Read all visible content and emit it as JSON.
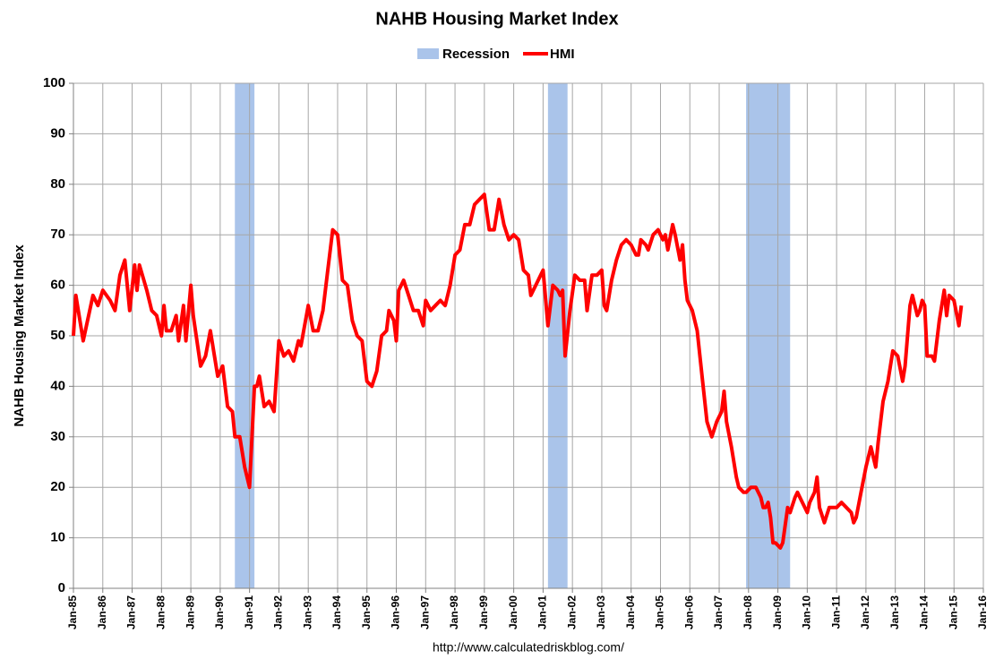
{
  "chart_data": {
    "type": "line",
    "title": "NAHB Housing Market Index",
    "ylabel": "NAHB Housing Market Index",
    "source": "http://www.calculatedriskblog.com/",
    "ylim": [
      0,
      100
    ],
    "yticks": [
      0,
      10,
      20,
      30,
      40,
      50,
      60,
      70,
      80,
      90,
      100
    ],
    "xlim": [
      "1985-01",
      "2016-01"
    ],
    "xticks": [
      {
        "value": "1985-01",
        "label": "Jan-85"
      },
      {
        "value": "1986-01",
        "label": "Jan-86"
      },
      {
        "value": "1987-01",
        "label": "Jan-87"
      },
      {
        "value": "1988-01",
        "label": "Jan-88"
      },
      {
        "value": "1989-01",
        "label": "Jan-89"
      },
      {
        "value": "1990-01",
        "label": "Jan-90"
      },
      {
        "value": "1991-01",
        "label": "Jan-91"
      },
      {
        "value": "1992-01",
        "label": "Jan-92"
      },
      {
        "value": "1993-01",
        "label": "Jan-93"
      },
      {
        "value": "1994-01",
        "label": "Jan-94"
      },
      {
        "value": "1995-01",
        "label": "Jan-95"
      },
      {
        "value": "1996-01",
        "label": "Jan-96"
      },
      {
        "value": "1997-01",
        "label": "Jan-97"
      },
      {
        "value": "1998-01",
        "label": "Jan-98"
      },
      {
        "value": "1999-01",
        "label": "Jan-99"
      },
      {
        "value": "2000-01",
        "label": "Jan-00"
      },
      {
        "value": "2001-01",
        "label": "Jan-01"
      },
      {
        "value": "2002-01",
        "label": "Jan-02"
      },
      {
        "value": "2003-01",
        "label": "Jan-03"
      },
      {
        "value": "2004-01",
        "label": "Jan-04"
      },
      {
        "value": "2005-01",
        "label": "Jan-05"
      },
      {
        "value": "2006-01",
        "label": "Jan-06"
      },
      {
        "value": "2007-01",
        "label": "Jan-07"
      },
      {
        "value": "2008-01",
        "label": "Jan-08"
      },
      {
        "value": "2009-01",
        "label": "Jan-09"
      },
      {
        "value": "2010-01",
        "label": "Jan-10"
      },
      {
        "value": "2011-01",
        "label": "Jan-11"
      },
      {
        "value": "2012-01",
        "label": "Jan-12"
      },
      {
        "value": "2013-01",
        "label": "Jan-13"
      },
      {
        "value": "2014-01",
        "label": "Jan-14"
      },
      {
        "value": "2015-01",
        "label": "Jan-15"
      },
      {
        "value": "2016-01",
        "label": "Jan-16"
      }
    ],
    "grid": true,
    "recessions": {
      "name": "Recession",
      "color": "#aac4ea",
      "periods": [
        {
          "start": "1990-07",
          "end": "1991-03"
        },
        {
          "start": "2001-03",
          "end": "2001-11"
        },
        {
          "start": "2007-12",
          "end": "2009-06"
        }
      ]
    },
    "x": [
      "1985-01",
      "1985-02",
      "1985-05",
      "1985-09",
      "1985-11",
      "1986-01",
      "1986-04",
      "1986-06",
      "1986-08",
      "1986-10",
      "1986-12",
      "1987-02",
      "1987-03",
      "1987-04",
      "1987-07",
      "1987-09",
      "1987-11",
      "1988-01",
      "1988-02",
      "1988-03",
      "1988-05",
      "1988-07",
      "1988-08",
      "1988-10",
      "1988-11",
      "1989-01",
      "1989-02",
      "1989-05",
      "1989-07",
      "1989-09",
      "1989-12",
      "1990-02",
      "1990-04",
      "1990-06",
      "1990-07",
      "1990-09",
      "1990-11",
      "1991-01",
      "1991-03",
      "1991-04",
      "1991-05",
      "1991-07",
      "1991-09",
      "1991-11",
      "1992-01",
      "1992-03",
      "1992-05",
      "1992-07",
      "1992-09",
      "1992-10",
      "1993-01",
      "1993-03",
      "1993-05",
      "1993-07",
      "1993-09",
      "1993-11",
      "1994-01",
      "1994-03",
      "1994-05",
      "1994-07",
      "1994-09",
      "1994-11",
      "1995-01",
      "1995-03",
      "1995-05",
      "1995-07",
      "1995-09",
      "1995-10",
      "1995-12",
      "1996-01",
      "1996-02",
      "1996-04",
      "1996-06",
      "1996-08",
      "1996-10",
      "1996-12",
      "1997-01",
      "1997-03",
      "1997-05",
      "1997-07",
      "1997-09",
      "1997-11",
      "1998-01",
      "1998-03",
      "1998-05",
      "1998-07",
      "1998-09",
      "1998-11",
      "1999-01",
      "1999-03",
      "1999-05",
      "1999-07",
      "1999-09",
      "1999-11",
      "2000-01",
      "2000-03",
      "2000-05",
      "2000-07",
      "2000-08",
      "2000-10",
      "2000-12",
      "2001-01",
      "2001-03",
      "2001-05",
      "2001-07",
      "2001-08",
      "2001-09",
      "2001-10",
      "2001-12",
      "2002-02",
      "2002-04",
      "2002-06",
      "2002-07",
      "2002-09",
      "2002-11",
      "2003-01",
      "2003-02",
      "2003-03",
      "2003-05",
      "2003-07",
      "2003-09",
      "2003-11",
      "2004-01",
      "2004-03",
      "2004-04",
      "2004-05",
      "2004-07",
      "2004-08",
      "2004-10",
      "2004-12",
      "2005-02",
      "2005-03",
      "2005-04",
      "2005-06",
      "2005-07",
      "2005-09",
      "2005-10",
      "2005-11",
      "2005-12",
      "2006-02",
      "2006-04",
      "2006-06",
      "2006-08",
      "2006-10",
      "2006-12",
      "2007-02",
      "2007-03",
      "2007-04",
      "2007-06",
      "2007-08",
      "2007-09",
      "2007-11",
      "2007-12",
      "2008-02",
      "2008-04",
      "2008-06",
      "2008-07",
      "2008-08",
      "2008-09",
      "2008-10",
      "2008-11",
      "2008-12",
      "2009-02",
      "2009-03",
      "2009-05",
      "2009-06",
      "2009-08",
      "2009-09",
      "2009-11",
      "2010-01",
      "2010-02",
      "2010-04",
      "2010-05",
      "2010-06",
      "2010-08",
      "2010-10",
      "2011-01",
      "2011-03",
      "2011-05",
      "2011-07",
      "2011-08",
      "2011-09",
      "2011-11",
      "2012-01",
      "2012-03",
      "2012-05",
      "2012-06",
      "2012-08",
      "2012-10",
      "2012-12",
      "2013-02",
      "2013-04",
      "2013-05",
      "2013-07",
      "2013-08",
      "2013-10",
      "2013-11",
      "2013-12",
      "2014-01",
      "2014-02",
      "2014-04",
      "2014-05",
      "2014-07",
      "2014-09",
      "2014-10",
      "2014-11",
      "2015-01",
      "2015-03",
      "2015-04"
    ],
    "series": [
      {
        "name": "HMI",
        "color": "#ff0000",
        "values": [
          50,
          58,
          49,
          58,
          56,
          59,
          57,
          55,
          62,
          65,
          55,
          64,
          59,
          64,
          59,
          55,
          54,
          50,
          56,
          51,
          51,
          54,
          49,
          56,
          49,
          60,
          54,
          44,
          46,
          51,
          42,
          44,
          36,
          35,
          30,
          30,
          24,
          20,
          40,
          40,
          42,
          36,
          37,
          35,
          49,
          46,
          47,
          45,
          49,
          48,
          56,
          51,
          51,
          55,
          63,
          71,
          70,
          61,
          60,
          53,
          50,
          49,
          41,
          40,
          43,
          50,
          51,
          55,
          53,
          49,
          59,
          61,
          58,
          55,
          55,
          52,
          57,
          55,
          56,
          57,
          56,
          60,
          66,
          67,
          72,
          72,
          76,
          77,
          78,
          71,
          71,
          77,
          72,
          69,
          70,
          69,
          63,
          62,
          58,
          60,
          62,
          63,
          52,
          60,
          59,
          58,
          59,
          46,
          55,
          62,
          61,
          61,
          55,
          62,
          62,
          63,
          56,
          55,
          61,
          65,
          68,
          69,
          68,
          66,
          66,
          69,
          68,
          67,
          70,
          71,
          69,
          70,
          67,
          72,
          70,
          65,
          68,
          61,
          57,
          55,
          51,
          42,
          33,
          30,
          33,
          35,
          39,
          33,
          28,
          22,
          20,
          19,
          19,
          20,
          20,
          18,
          16,
          16,
          17,
          14,
          9,
          9,
          8,
          9,
          16,
          15,
          18,
          19,
          17,
          15,
          17,
          19,
          22,
          16,
          13,
          16,
          16,
          17,
          16,
          15,
          13,
          14,
          19,
          24,
          28,
          24,
          29,
          37,
          41,
          47,
          46,
          41,
          44,
          56,
          58,
          54,
          55,
          57,
          56,
          46,
          46,
          45,
          53,
          59,
          54,
          58,
          57,
          52,
          56
        ]
      }
    ]
  }
}
